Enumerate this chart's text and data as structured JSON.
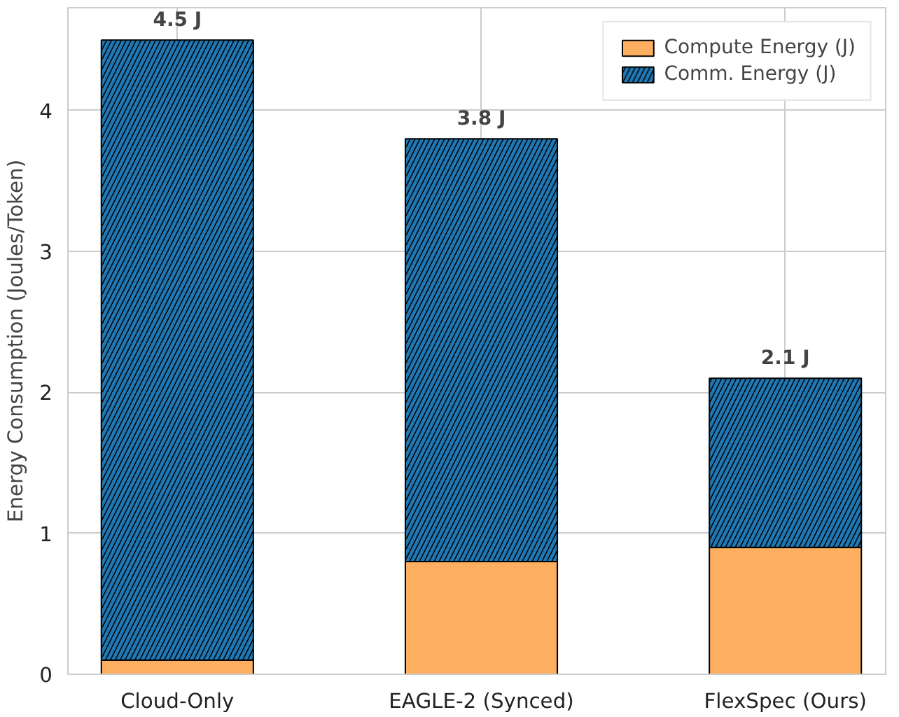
{
  "chart_data": {
    "type": "bar",
    "stacked": true,
    "ylabel": "Energy Consumption (Joules/Token)",
    "categories": [
      "Cloud-Only",
      "EAGLE-2 (Synced)",
      "FlexSpec (Ours)"
    ],
    "series": [
      {
        "name": "Compute Energy (J)",
        "color": "#fdae61",
        "values": [
          0.1,
          0.8,
          0.9
        ]
      },
      {
        "name": "Comm. Energy (J)",
        "color": "#1f78b4",
        "values": [
          4.4,
          3.0,
          1.2
        ]
      }
    ],
    "totals": [
      "4.5 J",
      "3.8 J",
      "2.1 J"
    ],
    "ylim": [
      0,
      4.73
    ],
    "yticks": [
      0,
      1,
      2,
      3,
      4
    ],
    "grid": true,
    "legend": "top right"
  }
}
